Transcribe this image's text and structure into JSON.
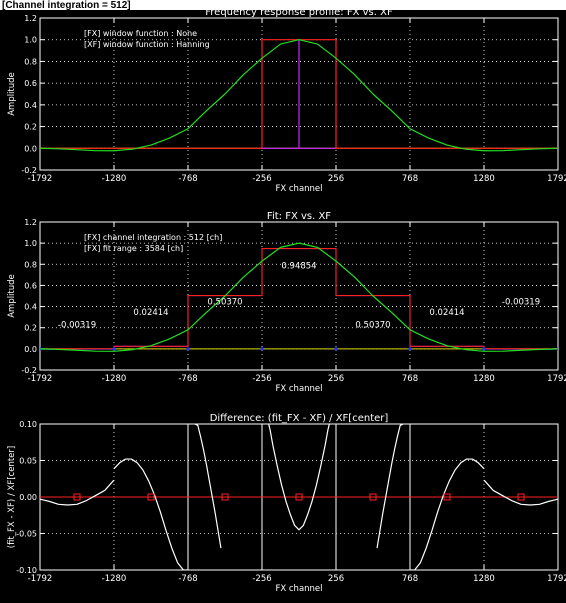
{
  "banner": "[Channel integration = 512]",
  "colors": {
    "background": "#000000",
    "axes": "#ffffff",
    "grid": "#ffffff",
    "red": "#ff2020",
    "green": "#22dd22",
    "blue": "#2233ff",
    "magenta": "#cc22ff",
    "yellow": "#dddd00",
    "white_curve": "#ffffff",
    "label_bg": "#000000"
  },
  "chart_data": [
    {
      "type": "line",
      "title": "Frequency response profile: FX vs. XF",
      "xlabel": "FX channel",
      "ylabel": "Amplitude",
      "xlim": [
        -1792,
        1792
      ],
      "ylim": [
        -0.2,
        1.2
      ],
      "xticks": [
        -1792,
        -1280,
        -768,
        -256,
        256,
        768,
        1280,
        1792
      ],
      "xtick_labels": [
        "-1792",
        "-1280",
        "-768",
        "-256",
        "256",
        "768",
        "1280",
        "1792"
      ],
      "yticks": [
        -0.2,
        0.0,
        0.2,
        0.4,
        0.6,
        0.8,
        1.0,
        1.2
      ],
      "ytick_labels": [
        "-0.2",
        "0.0",
        "0.2",
        "0.4",
        "0.6",
        "0.8",
        "1.0",
        "1.2"
      ],
      "grid": "dotted",
      "annotations": [
        "[FX] window function : None",
        "[XF] window function : Hanning"
      ],
      "series": [
        {
          "color": "red",
          "x": [
            -1792,
            -256,
            -256,
            256,
            256,
            1792
          ],
          "y": [
            0,
            0,
            1,
            1,
            0,
            0
          ]
        },
        {
          "color": "magenta",
          "x": [
            -256,
            0,
            0,
            0,
            256
          ],
          "y": [
            0,
            0,
            1,
            0,
            0
          ]
        },
        {
          "color": "green",
          "x": [
            -1792,
            -1664,
            -1536,
            -1408,
            -1280,
            -1152,
            -1024,
            -896,
            -768,
            -640,
            -512,
            -384,
            -256,
            -128,
            0,
            128,
            256,
            384,
            512,
            640,
            768,
            896,
            1024,
            1152,
            1280,
            1408,
            1536,
            1664,
            1792
          ],
          "y": [
            0.0,
            -0.005,
            -0.013,
            -0.022,
            -0.023,
            -0.008,
            0.03,
            0.094,
            0.18,
            0.346,
            0.5,
            0.679,
            0.83,
            0.96,
            1.0,
            0.96,
            0.83,
            0.679,
            0.5,
            0.346,
            0.18,
            0.094,
            0.03,
            -0.008,
            -0.023,
            -0.022,
            -0.013,
            -0.005,
            0.0
          ]
        }
      ]
    },
    {
      "type": "line",
      "title": "Fit: FX vs. XF",
      "xlabel": "FX channel",
      "ylabel": "Amplitude",
      "xlim": [
        -1792,
        1792
      ],
      "ylim": [
        -0.2,
        1.2
      ],
      "xticks": [
        -1792,
        -1280,
        -768,
        -256,
        256,
        768,
        1280,
        1792
      ],
      "xtick_labels": [
        "-1792",
        "-1280",
        "-768",
        "-256",
        "256",
        "768",
        "1280",
        "1792"
      ],
      "yticks": [
        -0.2,
        0.0,
        0.2,
        0.4,
        0.6,
        0.8,
        1.0,
        1.2
      ],
      "ytick_labels": [
        "-0.2",
        "0.0",
        "0.2",
        "0.4",
        "0.6",
        "0.8",
        "1.0",
        "1.2"
      ],
      "grid": "dotted",
      "annotations": [
        "[FX] channel integration : 512 [ch]",
        "[FX] fit range : 3584 [ch]"
      ],
      "bar_labels": [
        {
          "x": -1536,
          "y": 0.2,
          "text": "-0.00319"
        },
        {
          "x": -1024,
          "y": 0.32,
          "text": "0.02414"
        },
        {
          "x": -512,
          "y": 0.42,
          "text": "0.50370"
        },
        {
          "x": 0,
          "y": 0.76,
          "text": "0.94854"
        },
        {
          "x": 512,
          "y": 0.2,
          "text": "0.50370"
        },
        {
          "x": 1024,
          "y": 0.32,
          "text": "0.02414"
        },
        {
          "x": 1536,
          "y": 0.42,
          "text": "-0.00319"
        }
      ],
      "steps": {
        "edges": [
          -1792,
          -1280,
          -768,
          -256,
          256,
          768,
          1280,
          1792
        ],
        "red_values": [
          0.0,
          0.02414,
          0.5037,
          0.94854,
          0.5037,
          0.02414,
          0.0
        ],
        "blue_values": [
          -0.00319,
          0.02414,
          0.5037,
          0.94854,
          0.5037,
          0.02414,
          -0.00319
        ]
      },
      "series": [
        {
          "color": "green",
          "x": [
            -1792,
            -1664,
            -1536,
            -1408,
            -1280,
            -1152,
            -1024,
            -896,
            -768,
            -640,
            -512,
            -384,
            -256,
            -128,
            0,
            128,
            256,
            384,
            512,
            640,
            768,
            896,
            1024,
            1152,
            1280,
            1408,
            1536,
            1664,
            1792
          ],
          "y": [
            0.0,
            -0.005,
            -0.013,
            -0.022,
            -0.023,
            -0.008,
            0.03,
            0.094,
            0.18,
            0.346,
            0.5,
            0.679,
            0.83,
            0.96,
            1.0,
            0.96,
            0.83,
            0.679,
            0.5,
            0.346,
            0.18,
            0.094,
            0.03,
            -0.008,
            -0.023,
            -0.022,
            -0.013,
            -0.005,
            0.0
          ]
        }
      ]
    },
    {
      "type": "line",
      "title": "Difference: (fit_FX - XF) / XF[center]",
      "xlabel": "FX channel",
      "ylabel": "(fit_FX - XF) / XF[center]",
      "xlim": [
        -1792,
        1792
      ],
      "ylim": [
        -0.1,
        0.1
      ],
      "xticks": [
        -1792,
        -1280,
        -768,
        -256,
        256,
        768,
        1280,
        1792
      ],
      "xtick_labels": [
        "-1792",
        "-1280",
        "-768",
        "-256",
        "256",
        "768",
        "1280",
        "1792"
      ],
      "yticks": [
        -0.1,
        -0.05,
        0.0,
        0.05,
        0.1
      ],
      "ytick_labels": [
        "-0.10",
        "-0.05",
        "0.00",
        "0.05",
        "0.10"
      ],
      "grid": "dotted",
      "vertical_lines": [
        -768,
        -256,
        256,
        768
      ],
      "markers": {
        "color": "red",
        "shape": "square",
        "x": [
          -1536,
          -1024,
          -512,
          0,
          512,
          1024,
          1536
        ],
        "y": [
          0,
          0,
          0,
          0,
          0,
          0,
          0
        ]
      },
      "series": [
        {
          "color": "white",
          "x": [
            -1792,
            -1728,
            -1664,
            -1600,
            -1536,
            -1472,
            -1408,
            -1344,
            -1281
          ],
          "y": [
            -0.003,
            -0.006,
            -0.01,
            -0.011,
            -0.01,
            -0.005,
            0.002,
            0.009,
            0.023
          ]
        },
        {
          "color": "white",
          "x": [
            -1279,
            -1240,
            -1200,
            -1160,
            -1120,
            -1080,
            -1040,
            -1000,
            -960,
            -920,
            -880,
            -840,
            -800,
            -769
          ],
          "y": [
            0.039,
            0.047,
            0.052,
            0.052,
            0.047,
            0.037,
            0.022,
            0.003,
            -0.02,
            -0.046,
            -0.07,
            -0.09,
            -0.1,
            -0.1
          ]
        },
        {
          "color": "white",
          "x": [
            -720,
            -700,
            -680,
            -660,
            -640,
            -620,
            -600,
            -580,
            -560,
            -540
          ],
          "y": [
            0.1,
            0.098,
            0.082,
            0.064,
            0.044,
            0.022,
            0.0,
            -0.022,
            -0.046,
            -0.07
          ]
        },
        {
          "color": "white",
          "x": [
            -210,
            -200,
            -180,
            -150,
            -120,
            -90,
            -60,
            -30,
            0,
            30,
            60,
            90,
            120,
            150,
            180,
            200,
            210
          ],
          "y": [
            0.1,
            0.092,
            0.07,
            0.042,
            0.016,
            -0.006,
            -0.024,
            -0.039,
            -0.045,
            -0.039,
            -0.024,
            -0.006,
            0.016,
            0.042,
            0.07,
            0.092,
            0.1
          ]
        },
        {
          "color": "white",
          "x": [
            540,
            560,
            580,
            600,
            620,
            640,
            660,
            680,
            700,
            720
          ],
          "y": [
            -0.07,
            -0.046,
            -0.022,
            0.0,
            0.022,
            0.044,
            0.064,
            0.082,
            0.098,
            0.1
          ]
        },
        {
          "color": "white",
          "x": [
            769,
            800,
            840,
            880,
            920,
            960,
            1000,
            1040,
            1080,
            1120,
            1160,
            1200,
            1240,
            1279
          ],
          "y": [
            -0.1,
            -0.1,
            -0.09,
            -0.07,
            -0.046,
            -0.02,
            0.003,
            0.022,
            0.037,
            0.047,
            0.052,
            0.052,
            0.047,
            0.039
          ]
        },
        {
          "color": "white",
          "x": [
            1281,
            1344,
            1408,
            1472,
            1536,
            1600,
            1664,
            1728,
            1792
          ],
          "y": [
            0.023,
            0.009,
            0.002,
            -0.005,
            -0.01,
            -0.011,
            -0.01,
            -0.006,
            -0.003
          ]
        }
      ]
    }
  ]
}
